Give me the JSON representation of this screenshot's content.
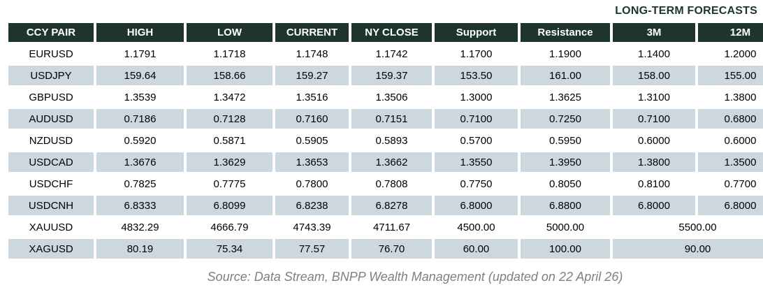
{
  "title": "LONG-TERM FORECASTS",
  "source": "Source: Data Stream, BNPP Wealth Management (updated on 22 April 26)",
  "colors": {
    "header_bg": "#1d352e",
    "header_text": "#ffffff",
    "stripe_bg": "#ccd8de",
    "title_text": "#1d352e",
    "source_text": "#808080"
  },
  "chart_data": {
    "type": "table",
    "title": "LONG-TERM FORECASTS",
    "columns": [
      "CCY PAIR",
      "HIGH",
      "LOW",
      "CURRENT",
      "NY CLOSE",
      "Support",
      "Resistance",
      "3M",
      "12M"
    ],
    "rows": [
      {
        "cells": [
          "EURUSD",
          "1.1791",
          "1.1718",
          "1.1748",
          "1.1742",
          "1.1700",
          "1.1900",
          "1.1400",
          "1.2000"
        ],
        "merged_last_two": false
      },
      {
        "cells": [
          "USDJPY",
          "159.64",
          "158.66",
          "159.27",
          "159.37",
          "153.50",
          "161.00",
          "158.00",
          "155.00"
        ],
        "merged_last_two": false
      },
      {
        "cells": [
          "GBPUSD",
          "1.3539",
          "1.3472",
          "1.3516",
          "1.3506",
          "1.3000",
          "1.3625",
          "1.3100",
          "1.3800"
        ],
        "merged_last_two": false
      },
      {
        "cells": [
          "AUDUSD",
          "0.7186",
          "0.7128",
          "0.7160",
          "0.7151",
          "0.7100",
          "0.7250",
          "0.7100",
          "0.6800"
        ],
        "merged_last_two": false
      },
      {
        "cells": [
          "NZDUSD",
          "0.5920",
          "0.5871",
          "0.5905",
          "0.5893",
          "0.5700",
          "0.5950",
          "0.6000",
          "0.6000"
        ],
        "merged_last_two": false
      },
      {
        "cells": [
          "USDCAD",
          "1.3676",
          "1.3629",
          "1.3653",
          "1.3662",
          "1.3550",
          "1.3950",
          "1.3800",
          "1.3500"
        ],
        "merged_last_two": false
      },
      {
        "cells": [
          "USDCHF",
          "0.7825",
          "0.7775",
          "0.7800",
          "0.7808",
          "0.7750",
          "0.8050",
          "0.8100",
          "0.7700"
        ],
        "merged_last_two": false
      },
      {
        "cells": [
          "USDCNH",
          "6.8333",
          "6.8099",
          "6.8238",
          "6.8278",
          "6.8000",
          "6.8800",
          "6.8000",
          "6.8000"
        ],
        "merged_last_two": false
      },
      {
        "cells": [
          "XAUUSD",
          "4832.29",
          "4666.79",
          "4743.39",
          "4711.67",
          "4500.00",
          "5000.00",
          "5500.00"
        ],
        "merged_last_two": true
      },
      {
        "cells": [
          "XAGUSD",
          "80.19",
          "75.34",
          "77.57",
          "76.70",
          "60.00",
          "100.00",
          "90.00"
        ],
        "merged_last_two": true
      }
    ]
  }
}
